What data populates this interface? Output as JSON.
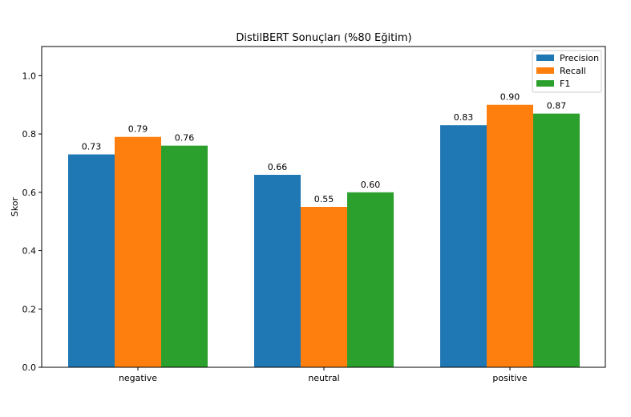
{
  "chart_data": {
    "type": "bar",
    "title": "DistilBERT Sonuçları (%80 Eğitim)",
    "xlabel": "",
    "ylabel": "Skor",
    "ylim": [
      0,
      1.1
    ],
    "yticks": [
      0.0,
      0.2,
      0.4,
      0.6,
      0.8,
      1.0
    ],
    "ytick_labels": [
      "0.0",
      "0.2",
      "0.4",
      "0.6",
      "0.8",
      "1.0"
    ],
    "categories": [
      "negative",
      "neutral",
      "positive"
    ],
    "legend_position": "top-right",
    "grid": false,
    "series": [
      {
        "name": "Precision",
        "color": "#1f77b4",
        "values": [
          0.73,
          0.66,
          0.83
        ],
        "labels": [
          "0.73",
          "0.66",
          "0.83"
        ]
      },
      {
        "name": "Recall",
        "color": "#ff7f0e",
        "values": [
          0.79,
          0.55,
          0.9
        ],
        "labels": [
          "0.79",
          "0.55",
          "0.90"
        ]
      },
      {
        "name": "F1",
        "color": "#2ca02c",
        "values": [
          0.76,
          0.6,
          0.87
        ],
        "labels": [
          "0.76",
          "0.60",
          "0.87"
        ]
      }
    ]
  }
}
